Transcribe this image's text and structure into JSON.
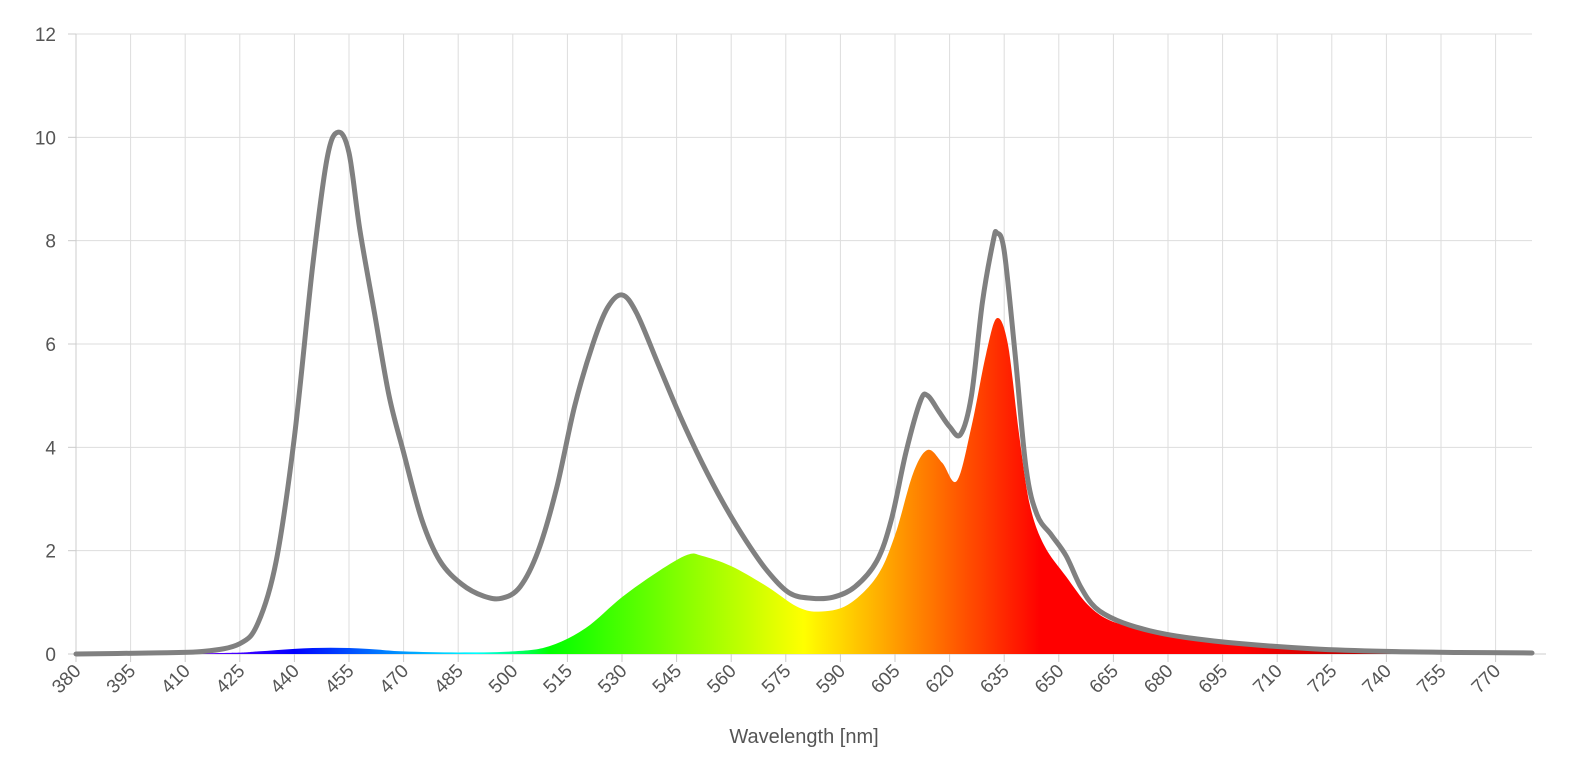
{
  "chart_data": {
    "type": "area",
    "title": "",
    "xlabel": "Wavelength [nm]",
    "ylabel": "",
    "xlim": [
      380,
      780
    ],
    "ylim": [
      0,
      12
    ],
    "grid": true,
    "legend": "none",
    "y_ticks": [
      0,
      2,
      4,
      6,
      8,
      10,
      12
    ],
    "x_ticks": [
      380,
      395,
      410,
      425,
      440,
      455,
      470,
      485,
      500,
      515,
      530,
      545,
      560,
      575,
      590,
      605,
      620,
      635,
      650,
      665,
      680,
      695,
      710,
      725,
      740,
      755,
      770
    ],
    "series": [
      {
        "style": "line",
        "color": "#808080",
        "points": [
          [
            380,
            0
          ],
          [
            400,
            0.02
          ],
          [
            415,
            0.05
          ],
          [
            425,
            0.2
          ],
          [
            430,
            0.6
          ],
          [
            435,
            1.8
          ],
          [
            440,
            4.2
          ],
          [
            445,
            7.5
          ],
          [
            449,
            9.6
          ],
          [
            452,
            10.1
          ],
          [
            455,
            9.7
          ],
          [
            458,
            8.2
          ],
          [
            462,
            6.6
          ],
          [
            466,
            5.0
          ],
          [
            470,
            3.9
          ],
          [
            475,
            2.6
          ],
          [
            480,
            1.8
          ],
          [
            486,
            1.35
          ],
          [
            492,
            1.12
          ],
          [
            497,
            1.08
          ],
          [
            502,
            1.3
          ],
          [
            507,
            2.0
          ],
          [
            512,
            3.2
          ],
          [
            517,
            4.8
          ],
          [
            522,
            6.0
          ],
          [
            526,
            6.7
          ],
          [
            530,
            6.95
          ],
          [
            534,
            6.6
          ],
          [
            540,
            5.6
          ],
          [
            546,
            4.6
          ],
          [
            552,
            3.7
          ],
          [
            558,
            2.9
          ],
          [
            564,
            2.2
          ],
          [
            570,
            1.6
          ],
          [
            576,
            1.18
          ],
          [
            582,
            1.08
          ],
          [
            588,
            1.1
          ],
          [
            594,
            1.3
          ],
          [
            600,
            1.8
          ],
          [
            604,
            2.6
          ],
          [
            608,
            3.9
          ],
          [
            612,
            4.9
          ],
          [
            614,
            5.0
          ],
          [
            617,
            4.7
          ],
          [
            620,
            4.4
          ],
          [
            623,
            4.25
          ],
          [
            626,
            5.0
          ],
          [
            629,
            6.8
          ],
          [
            632,
            8.0
          ],
          [
            633,
            8.15
          ],
          [
            635,
            7.8
          ],
          [
            638,
            5.8
          ],
          [
            641,
            3.6
          ],
          [
            644,
            2.7
          ],
          [
            648,
            2.3
          ],
          [
            652,
            1.9
          ],
          [
            656,
            1.3
          ],
          [
            660,
            0.9
          ],
          [
            666,
            0.65
          ],
          [
            675,
            0.45
          ],
          [
            685,
            0.32
          ],
          [
            700,
            0.2
          ],
          [
            720,
            0.1
          ],
          [
            740,
            0.05
          ],
          [
            760,
            0.03
          ],
          [
            780,
            0.02
          ]
        ]
      },
      {
        "style": "spectral-area",
        "points": [
          [
            380,
            0
          ],
          [
            420,
            0.02
          ],
          [
            430,
            0.05
          ],
          [
            440,
            0.1
          ],
          [
            450,
            0.12
          ],
          [
            460,
            0.1
          ],
          [
            470,
            0.05
          ],
          [
            485,
            0.03
          ],
          [
            500,
            0.05
          ],
          [
            510,
            0.15
          ],
          [
            520,
            0.5
          ],
          [
            530,
            1.1
          ],
          [
            540,
            1.6
          ],
          [
            548,
            1.92
          ],
          [
            552,
            1.9
          ],
          [
            560,
            1.7
          ],
          [
            570,
            1.3
          ],
          [
            578,
            0.92
          ],
          [
            584,
            0.82
          ],
          [
            592,
            0.95
          ],
          [
            600,
            1.5
          ],
          [
            605,
            2.3
          ],
          [
            610,
            3.5
          ],
          [
            614,
            3.95
          ],
          [
            618,
            3.7
          ],
          [
            622,
            3.35
          ],
          [
            626,
            4.4
          ],
          [
            630,
            5.8
          ],
          [
            633,
            6.5
          ],
          [
            636,
            6.0
          ],
          [
            639,
            4.3
          ],
          [
            642,
            2.9
          ],
          [
            646,
            2.1
          ],
          [
            652,
            1.5
          ],
          [
            658,
            0.95
          ],
          [
            664,
            0.65
          ],
          [
            672,
            0.5
          ],
          [
            682,
            0.35
          ],
          [
            695,
            0.22
          ],
          [
            710,
            0.12
          ],
          [
            730,
            0.07
          ],
          [
            750,
            0.04
          ],
          [
            770,
            0.06
          ],
          [
            780,
            0.03
          ]
        ]
      }
    ]
  }
}
